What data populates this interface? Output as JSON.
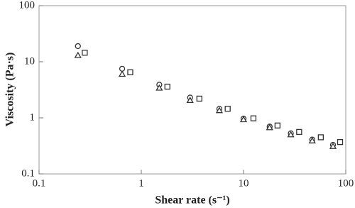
{
  "chart_data": {
    "type": "scatter",
    "xlabel": "Shear rate (s⁻¹)",
    "ylabel": "Viscosity (Pa·s)",
    "xlog": true,
    "ylog": true,
    "xlim": [
      0.1,
      100
    ],
    "ylim": [
      0.1,
      100
    ],
    "xticks": [
      0.1,
      1,
      10,
      100
    ],
    "yticks": [
      0.1,
      1,
      10,
      100
    ],
    "series": [
      {
        "marker": "circle",
        "color": "#333333",
        "x": [
          0.24,
          0.65,
          1.5,
          3,
          5.8,
          10,
          18,
          29,
          47,
          75
        ],
        "values": [
          19,
          7.5,
          3.9,
          2.3,
          1.45,
          0.97,
          0.7,
          0.53,
          0.41,
          0.33
        ]
      },
      {
        "marker": "triangle",
        "color": "#333333",
        "x": [
          0.24,
          0.65,
          1.5,
          3,
          5.8,
          10,
          18,
          29,
          47,
          75
        ],
        "values": [
          13,
          6,
          3.4,
          2.05,
          1.35,
          0.93,
          0.67,
          0.5,
          0.39,
          0.31
        ]
      },
      {
        "marker": "square",
        "color": "#333333",
        "x": [
          0.28,
          0.78,
          1.8,
          3.7,
          7,
          12.5,
          21.5,
          35,
          57,
          88
        ],
        "values": [
          14.5,
          6.5,
          3.6,
          2.2,
          1.45,
          0.98,
          0.73,
          0.56,
          0.45,
          0.37
        ]
      }
    ]
  }
}
